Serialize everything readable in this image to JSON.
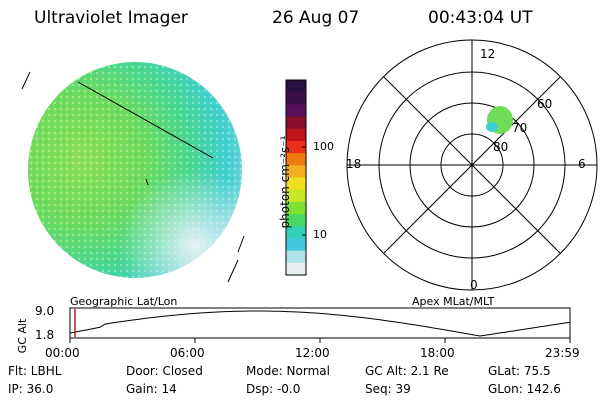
{
  "header": {
    "instrument": "Ultraviolet Imager",
    "date": "26 Aug 07",
    "time": "00:43:04 UT"
  },
  "colorbar": {
    "unit_label": "photon cm⁻²s⁻¹",
    "ticks": [
      "100",
      "10"
    ],
    "colors": [
      "#2a1040",
      "#3a0f4a",
      "#5a0f5a",
      "#8a0f2a",
      "#c0121a",
      "#e8301a",
      "#f07a10",
      "#f4b020",
      "#f0e020",
      "#c8e628",
      "#7ee030",
      "#48d860",
      "#30d0b8",
      "#40c8e0",
      "#b0e4e8",
      "#e6eef0"
    ]
  },
  "polar_plot": {
    "mlt_labels": [
      "12",
      "18",
      "6",
      "0"
    ],
    "lat_labels": [
      "60",
      "70",
      "80"
    ]
  },
  "timeline": {
    "y_label": "GC Alt",
    "y_ticks": [
      "9.0",
      "1.8"
    ],
    "left_title": "Geographic Lat/Lon",
    "right_title": "Apex MLat/MLT",
    "x_ticks": [
      "00:00",
      "06:00",
      "12:00",
      "18:00",
      "23:59"
    ],
    "marker_color": "#b02020"
  },
  "info": {
    "flt": "Flt: LBHL",
    "ip": "IP: 36.0",
    "door": "Door: Closed",
    "gain": "Gain: 14",
    "mode": "Mode: Normal",
    "dsp": "Dsp:    -0.0",
    "gcalt": "GC Alt: 2.1 Re",
    "seq": "Seq: 39",
    "glat": "GLat:   75.5",
    "glon": "GLon: 142.6"
  }
}
